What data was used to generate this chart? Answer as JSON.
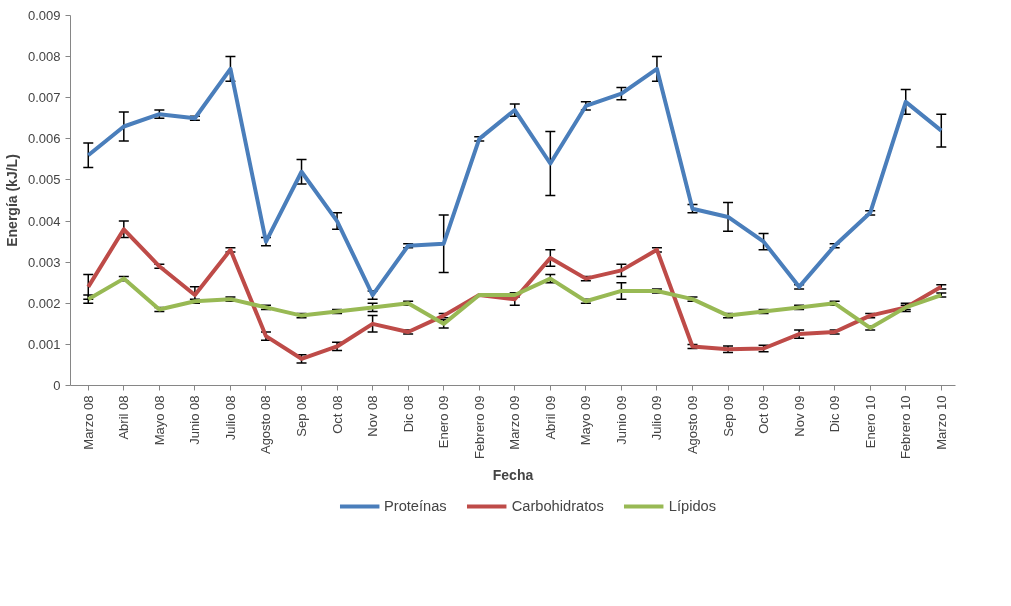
{
  "chart_data": {
    "type": "line",
    "xlabel": "Fecha",
    "ylabel": "Energía (kJ/L)",
    "categories": [
      "Marzo 08",
      "Abril 08",
      "Mayo 08",
      "Junio 08",
      "Julio 08",
      "Agosto 08",
      "Sep 08",
      "Oct 08",
      "Nov 08",
      "Dic 08",
      "Enero 09",
      "Febrero 09",
      "Marzo 09",
      "Abril 09",
      "Mayo 09",
      "Junio 09",
      "Julio 09",
      "Agosto 09",
      "Sep 09",
      "Oct 09",
      "Nov 09",
      "Dic 09",
      "Enero 10",
      "Febrero 10",
      "Marzo 10"
    ],
    "series": [
      {
        "name": "Proteínas",
        "color": "#4a7ebb",
        "values": [
          0.0056,
          0.0063,
          0.0066,
          0.0065,
          0.0077,
          0.0035,
          0.0052,
          0.004,
          0.0022,
          0.0034,
          0.00345,
          0.006,
          0.0067,
          0.0054,
          0.0068,
          0.0071,
          0.0077,
          0.0043,
          0.0041,
          0.0035,
          0.0024,
          0.0034,
          0.0042,
          0.0069,
          0.0062
        ],
        "errors": [
          0.0003,
          0.00035,
          0.0001,
          5e-05,
          0.0003,
          0.0001,
          0.0003,
          0.0002,
          0.0001,
          5e-05,
          0.0007,
          5e-05,
          0.00015,
          0.00078,
          0.0001,
          0.00015,
          0.0003,
          0.0001,
          0.00035,
          0.0002,
          5e-05,
          5e-05,
          5e-05,
          0.0003,
          0.0004
        ]
      },
      {
        "name": "Carbohidratos",
        "color": "#be4b48",
        "values": [
          0.0024,
          0.0038,
          0.0029,
          0.0022,
          0.0033,
          0.0012,
          0.00065,
          0.00095,
          0.0015,
          0.0013,
          0.0017,
          0.0022,
          0.0021,
          0.0031,
          0.0026,
          0.0028,
          0.0033,
          0.00095,
          0.00088,
          0.0009,
          0.00125,
          0.0013,
          0.0017,
          0.0019,
          0.0024
        ],
        "errors": [
          0.0003,
          0.0002,
          5e-05,
          0.0002,
          5e-05,
          0.0001,
          0.0001,
          0.0001,
          0.0002,
          5e-05,
          5e-05,
          null,
          0.00015,
          0.0002,
          5e-05,
          0.00015,
          5e-05,
          5e-05,
          8e-05,
          8e-05,
          0.0001,
          5e-05,
          5e-05,
          0.0001,
          5e-05
        ]
      },
      {
        "name": "Lípidos",
        "color": "#98b954",
        "values": [
          0.0021,
          0.0026,
          0.00185,
          0.00205,
          0.0021,
          0.0019,
          0.0017,
          0.0018,
          0.0019,
          0.002,
          0.0015,
          0.0022,
          0.0022,
          0.0026,
          0.00205,
          0.0023,
          0.0023,
          0.0021,
          0.0017,
          0.0018,
          0.0019,
          0.002,
          0.0014,
          0.0019,
          0.0022
        ],
        "errors": [
          0.0001,
          5e-05,
          5e-05,
          5e-05,
          5e-05,
          5e-05,
          5e-05,
          5e-05,
          0.0001,
          5e-05,
          0.0001,
          null,
          5e-05,
          0.0001,
          5e-05,
          0.0002,
          5e-05,
          5e-05,
          5e-05,
          5e-05,
          5e-05,
          5e-05,
          5e-05,
          5e-05,
          5e-05
        ]
      }
    ],
    "ylim": [
      0,
      0.009
    ],
    "yticks": [
      {
        "value": 0,
        "label": "0"
      },
      0.001,
      0.002,
      0.003,
      0.004,
      0.005,
      0.006,
      0.007,
      0.008,
      0.009
    ],
    "grid": false,
    "legend": "bottom",
    "marker": "none",
    "line_style": "solid"
  }
}
